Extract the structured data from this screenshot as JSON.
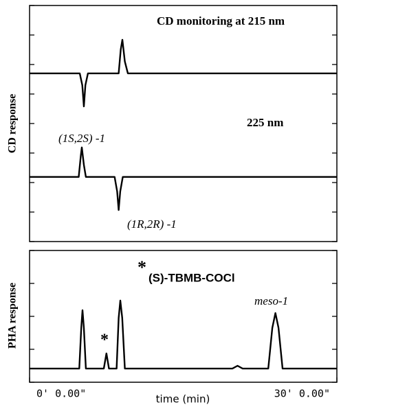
{
  "chart_data": [
    {
      "type": "line",
      "ylabel": "CD response",
      "xlim": [
        0,
        30
      ],
      "ylim": [
        0,
        8
      ],
      "yticks": [
        0,
        1,
        2,
        3,
        4,
        5,
        6,
        7,
        8
      ],
      "annotations": [
        "CD monitoring at 215 nm",
        "225 nm",
        "(1S,2S) -1",
        "(1R,2R) -1"
      ],
      "series": [
        {
          "color": "#000000",
          "x": [
            0,
            4.9,
            5.15,
            5.3,
            5.45,
            5.7,
            8.7,
            8.9,
            9.06,
            9.3,
            9.6,
            30
          ],
          "values": [
            5.7,
            5.7,
            5.3,
            4.58,
            5.3,
            5.7,
            5.7,
            6.5,
            6.84,
            6.1,
            5.7,
            5.7
          ]
        },
        {
          "color": "#000000",
          "x": [
            0,
            4.8,
            5.0,
            5.1,
            5.3,
            5.5,
            8.3,
            8.55,
            8.7,
            8.85,
            9.1,
            30
          ],
          "values": [
            2.19,
            2.19,
            2.9,
            3.19,
            2.6,
            2.19,
            2.19,
            1.7,
            1.07,
            1.7,
            2.19,
            2.19
          ]
        }
      ]
    },
    {
      "type": "line",
      "ylabel": "PHA response",
      "xlabel": "time (min)",
      "xlim": [
        0,
        30
      ],
      "ylim": [
        0,
        8
      ],
      "yticks": [
        0,
        2,
        4,
        6,
        8
      ],
      "xticks": [
        {
          "value": 0,
          "label": "0' 0.00\""
        },
        {
          "value": 30,
          "label": "30' 0.00\""
        }
      ],
      "annotations": [
        "*",
        "(S)-TBMB-COCl",
        "*",
        "meso-1"
      ],
      "series": [
        {
          "color": "#000000",
          "x": [
            0,
            4.85,
            5.05,
            5.17,
            5.3,
            5.5,
            7.25,
            7.5,
            7.75,
            8.5,
            8.7,
            8.86,
            9.05,
            9.3,
            19.8,
            20.3,
            20.8,
            23.3,
            23.7,
            24.0,
            24.3,
            24.7,
            30
          ],
          "values": [
            0.83,
            0.83,
            3.3,
            4.37,
            3.3,
            0.83,
            0.83,
            1.75,
            0.83,
            0.83,
            3.9,
            4.96,
            3.9,
            0.83,
            0.83,
            1.0,
            0.83,
            0.83,
            3.3,
            4.2,
            3.3,
            0.83,
            0.83
          ]
        }
      ]
    }
  ]
}
